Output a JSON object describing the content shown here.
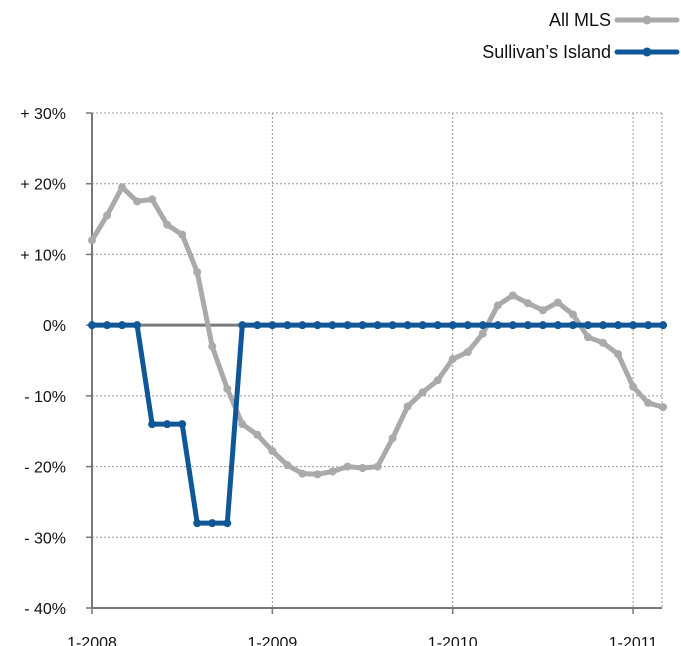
{
  "chart_data": {
    "type": "line",
    "title": "",
    "xlabel": "",
    "ylabel": "",
    "ylim": [
      -40,
      30
    ],
    "y_ticks": [
      30,
      20,
      10,
      0,
      -10,
      -20,
      -30,
      -40
    ],
    "y_tick_labels": [
      "+ 30%",
      "+ 20%",
      "+ 10%",
      "0%",
      "- 10%",
      "- 20%",
      "- 30%",
      "- 40%"
    ],
    "x_tick_labels": [
      "1-2008",
      "1-2009",
      "1-2010",
      "1-2011"
    ],
    "x_tick_index": [
      0,
      12,
      24,
      36
    ],
    "x_count": 39,
    "grid": true,
    "legend_position": "top-right",
    "series": [
      {
        "name": "All MLS",
        "color": "#aaaaaa",
        "values": [
          12,
          15.5,
          19.5,
          17.5,
          17.8,
          14.2,
          12.8,
          7.5,
          -3,
          -9,
          -14,
          -15.5,
          -17.8,
          -19.8,
          -21,
          -21.1,
          -20.7,
          -20,
          -20.2,
          -20,
          -16,
          -11.5,
          -9.5,
          -7.8,
          -4.8,
          -3.8,
          -1.2,
          2.8,
          4.2,
          3.1,
          2.1,
          3.2,
          1.5,
          -1.7,
          -2.5,
          -4.1,
          -8.7,
          -11,
          -11.6
        ]
      },
      {
        "name": "Sullivan’s Island",
        "color": "#105797",
        "values": [
          0,
          0,
          0,
          0,
          -14,
          -14,
          -14,
          -28,
          -28,
          -28,
          0,
          0,
          0,
          0,
          0,
          0,
          0,
          0,
          0,
          0,
          0,
          0,
          0,
          0,
          0,
          0,
          0,
          0,
          0,
          0,
          0,
          0,
          0,
          0,
          0,
          0,
          0,
          0,
          0
        ]
      }
    ]
  }
}
